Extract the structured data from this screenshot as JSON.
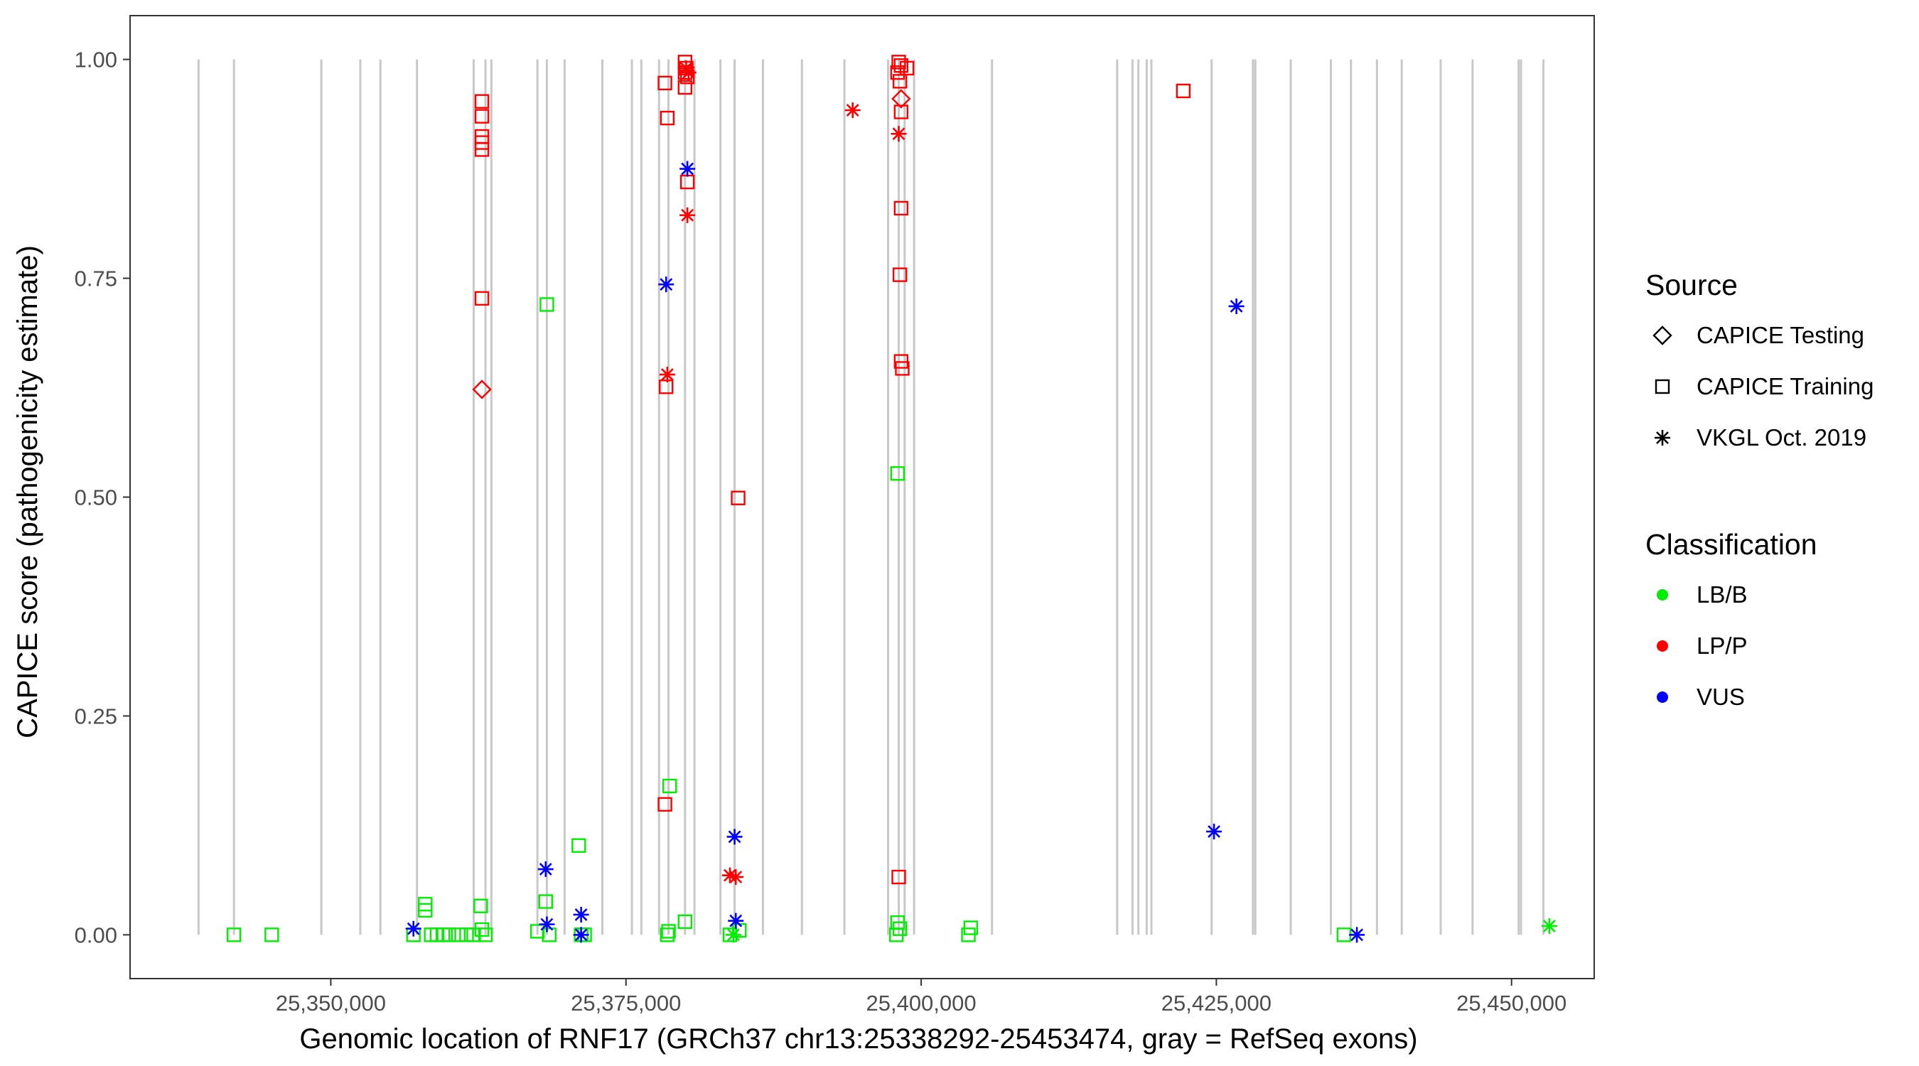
{
  "chart_data": {
    "type": "scatter",
    "xlabel": "Genomic location of RNF17 (GRCh37 chr13:25338292-25453474, gray = RefSeq exons)",
    "ylabel": "CAPICE score (pathogenicity estimate)",
    "xlim": [
      25333000,
      25457000
    ],
    "ylim": [
      -0.05,
      1.05
    ],
    "x_ticks": [
      25350000,
      25375000,
      25400000,
      25425000,
      25450000
    ],
    "x_tick_labels": [
      "25,350,000",
      "25,375,000",
      "25,400,000",
      "25,425,000",
      "25,450,000"
    ],
    "y_ticks": [
      0.0,
      0.25,
      0.5,
      0.75,
      1.0
    ],
    "y_tick_labels": [
      "0.00",
      "0.25",
      "0.50",
      "0.75",
      "1.00"
    ],
    "grid": false,
    "exon_lines_color": "#c8c8c8",
    "exon_positions": [
      25338800,
      25341800,
      25349200,
      25352500,
      25354200,
      25357300,
      25362100,
      25363100,
      25363600,
      25367500,
      25368300,
      25369800,
      25373000,
      25375500,
      25376300,
      25377800,
      25378600,
      25380000,
      25380800,
      25383000,
      25384200,
      25386600,
      25389900,
      25393500,
      25397200,
      25398100,
      25398600,
      25399400,
      25406000,
      25416600,
      25417900,
      25418400,
      25419100,
      25419500,
      25424600,
      25428100,
      25428300,
      25431300,
      25434700,
      25436400,
      25438600,
      25440700,
      25444000,
      25446700,
      25450600,
      25450800,
      25452700
    ],
    "legends": [
      {
        "title": "Source",
        "position": "right",
        "items": [
          {
            "label": "CAPICE Testing",
            "shape": "diamond"
          },
          {
            "label": "CAPICE Training",
            "shape": "square"
          },
          {
            "label": "VKGL Oct. 2019",
            "shape": "asterisk"
          }
        ]
      },
      {
        "title": "Classification",
        "position": "right",
        "items": [
          {
            "label": "LB/B",
            "color": "#00ee00"
          },
          {
            "label": "LP/P",
            "color": "#ff0000"
          },
          {
            "label": "VUS",
            "color": "#0000ff"
          }
        ]
      }
    ],
    "class_colors": {
      "LB/B": "#00ee00",
      "LP/P": "#ff0000",
      "VUS": "#0000ff"
    },
    "series": [
      {
        "name": "CAPICE Training",
        "shape": "square",
        "class": "LB/B",
        "points": [
          [
            25341800,
            0.0
          ],
          [
            25345000,
            0.0
          ],
          [
            25357000,
            0.0
          ],
          [
            25358000,
            0.035
          ],
          [
            25358000,
            0.028
          ],
          [
            25358500,
            0.0
          ],
          [
            25359000,
            0.0
          ],
          [
            25359500,
            0.0
          ],
          [
            25360000,
            0.0
          ],
          [
            25360800,
            0.0
          ],
          [
            25361500,
            0.0
          ],
          [
            25362100,
            0.0
          ],
          [
            25362700,
            0.033
          ],
          [
            25362800,
            0.006
          ],
          [
            25363100,
            0.0
          ],
          [
            25367500,
            0.004
          ],
          [
            25368200,
            0.038
          ],
          [
            25368300,
            0.72
          ],
          [
            25368500,
            0.0
          ],
          [
            25371000,
            0.102
          ],
          [
            25371200,
            0.0
          ],
          [
            25371500,
            0.0
          ],
          [
            25378500,
            0.0
          ],
          [
            25378700,
            0.17
          ],
          [
            25378600,
            0.004
          ],
          [
            25380000,
            0.015
          ],
          [
            25383800,
            0.0
          ],
          [
            25384600,
            0.005
          ],
          [
            25398000,
            0.527
          ],
          [
            25398000,
            0.014
          ],
          [
            25398200,
            0.007
          ],
          [
            25397900,
            0.0
          ],
          [
            25404000,
            0.0
          ],
          [
            25404200,
            0.008
          ],
          [
            25435800,
            0.0
          ]
        ]
      },
      {
        "name": "CAPICE Training",
        "shape": "square",
        "class": "LP/P",
        "points": [
          [
            25362800,
            0.952
          ],
          [
            25362800,
            0.935
          ],
          [
            25362800,
            0.912
          ],
          [
            25362800,
            0.905
          ],
          [
            25362800,
            0.897
          ],
          [
            25362800,
            0.727
          ],
          [
            25378300,
            0.973
          ],
          [
            25378500,
            0.933
          ],
          [
            25378400,
            0.626
          ],
          [
            25378300,
            0.149
          ],
          [
            25380000,
            0.997
          ],
          [
            25380100,
            0.99
          ],
          [
            25380000,
            0.985
          ],
          [
            25380200,
            0.98
          ],
          [
            25380000,
            0.968
          ],
          [
            25380200,
            0.86
          ],
          [
            25384500,
            0.499
          ],
          [
            25398100,
            0.997
          ],
          [
            25398300,
            0.993
          ],
          [
            25398800,
            0.99
          ],
          [
            25398000,
            0.985
          ],
          [
            25398200,
            0.975
          ],
          [
            25398300,
            0.94
          ],
          [
            25398300,
            0.83
          ],
          [
            25398200,
            0.754
          ],
          [
            25398300,
            0.655
          ],
          [
            25398400,
            0.647
          ],
          [
            25398100,
            0.066
          ],
          [
            25422200,
            0.964
          ]
        ]
      },
      {
        "name": "CAPICE Testing",
        "shape": "diamond",
        "class": "LP/P",
        "points": [
          [
            25362800,
            0.623
          ],
          [
            25398300,
            0.955
          ]
        ]
      },
      {
        "name": "VKGL Oct. 2019",
        "shape": "asterisk",
        "class": "LB/B",
        "points": [
          [
            25453200,
            0.01
          ],
          [
            25384100,
            0.0
          ]
        ]
      },
      {
        "name": "VKGL Oct. 2019",
        "shape": "asterisk",
        "class": "LP/P",
        "points": [
          [
            25380100,
            0.99
          ],
          [
            25380300,
            0.985
          ],
          [
            25394200,
            0.942
          ],
          [
            25398100,
            0.915
          ],
          [
            25380200,
            0.822
          ],
          [
            25378500,
            0.64
          ],
          [
            25383800,
            0.068
          ],
          [
            25384300,
            0.066
          ]
        ]
      },
      {
        "name": "VKGL Oct. 2019",
        "shape": "asterisk",
        "class": "VUS",
        "points": [
          [
            25357000,
            0.007
          ],
          [
            25368200,
            0.075
          ],
          [
            25368300,
            0.012
          ],
          [
            25371200,
            0.023
          ],
          [
            25371200,
            0.0
          ],
          [
            25378400,
            0.743
          ],
          [
            25380200,
            0.875
          ],
          [
            25384200,
            0.112
          ],
          [
            25384300,
            0.016
          ],
          [
            25424800,
            0.118
          ],
          [
            25426700,
            0.718
          ],
          [
            25436900,
            0.0
          ]
        ]
      }
    ]
  }
}
